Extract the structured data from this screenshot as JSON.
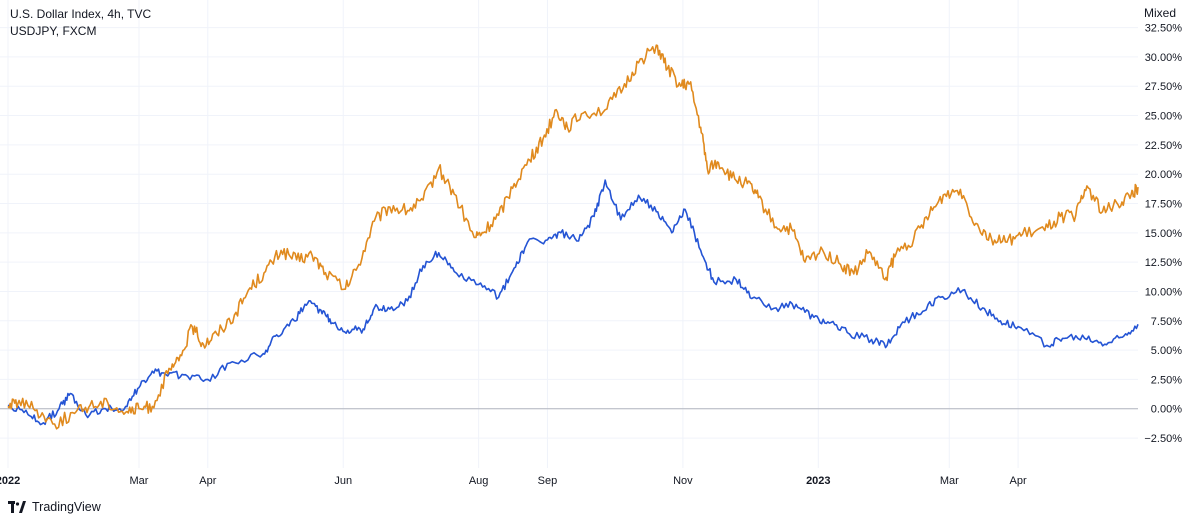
{
  "legend": {
    "series1": "U.S. Dollar Index, 4h, TVC",
    "series2": "USDJPY, FXCM"
  },
  "scale_mode": "Mixed",
  "brand": "TradingView",
  "colors": {
    "dxy": "#2454d4",
    "usdjpy": "#e08a1e",
    "zero_line": "#b2b5be",
    "text": "#131722"
  },
  "chart_data": {
    "type": "line",
    "y_unit": "percent change",
    "ylim": [
      -4.2,
      34
    ],
    "y_ticks": [
      "32.50%",
      "30.00%",
      "27.50%",
      "25.00%",
      "22.50%",
      "20.00%",
      "17.50%",
      "15.00%",
      "12.50%",
      "10.00%",
      "7.50%",
      "5.00%",
      "2.50%",
      "0.00%",
      "−2.50%"
    ],
    "y_tick_values": [
      32.5,
      30,
      27.5,
      25,
      22.5,
      20,
      17.5,
      15,
      12.5,
      10,
      7.5,
      5,
      2.5,
      0,
      -2.5
    ],
    "x_ticks": [
      {
        "label": "2022",
        "date": "2022-01-01",
        "bold": true
      },
      {
        "label": "Mar",
        "date": "2022-03-01",
        "bold": false
      },
      {
        "label": "Apr",
        "date": "2022-04-01",
        "bold": false
      },
      {
        "label": "Jun",
        "date": "2022-06-01",
        "bold": false
      },
      {
        "label": "Aug",
        "date": "2022-08-01",
        "bold": false
      },
      {
        "label": "Sep",
        "date": "2022-09-01",
        "bold": false
      },
      {
        "label": "Nov",
        "date": "2022-11-01",
        "bold": false
      },
      {
        "label": "2023",
        "date": "2023-01-01",
        "bold": true
      },
      {
        "label": "Mar",
        "date": "2023-03-01",
        "bold": false
      },
      {
        "label": "Apr",
        "date": "2023-04-01",
        "bold": false
      }
    ],
    "xlim": [
      "2022-01-01",
      "2023-05-25"
    ],
    "series": [
      {
        "name": "U.S. Dollar Index, 4h, TVC",
        "color": "#2454d4",
        "points": [
          [
            "2022-01-01",
            0.3
          ],
          [
            "2022-01-10",
            -0.5
          ],
          [
            "2022-01-17",
            -1.2
          ],
          [
            "2022-01-24",
            0.0
          ],
          [
            "2022-01-29",
            1.3
          ],
          [
            "2022-02-05",
            -0.5
          ],
          [
            "2022-02-14",
            0.0
          ],
          [
            "2022-02-23",
            0.2
          ],
          [
            "2022-03-01",
            1.8
          ],
          [
            "2022-03-07",
            3.2
          ],
          [
            "2022-03-14",
            2.8
          ],
          [
            "2022-03-22",
            2.9
          ],
          [
            "2022-04-01",
            2.5
          ],
          [
            "2022-04-12",
            4.0
          ],
          [
            "2022-04-26",
            4.7
          ],
          [
            "2022-05-02",
            6.3
          ],
          [
            "2022-05-10",
            7.5
          ],
          [
            "2022-05-16",
            9.0
          ],
          [
            "2022-05-22",
            8.4
          ],
          [
            "2022-05-27",
            7.3
          ],
          [
            "2022-06-03",
            6.7
          ],
          [
            "2022-06-10",
            6.8
          ],
          [
            "2022-06-15",
            8.6
          ],
          [
            "2022-06-22",
            8.5
          ],
          [
            "2022-06-30",
            9.2
          ],
          [
            "2022-07-07",
            12.2
          ],
          [
            "2022-07-14",
            13.3
          ],
          [
            "2022-07-21",
            11.7
          ],
          [
            "2022-08-01",
            10.6
          ],
          [
            "2022-08-10",
            9.5
          ],
          [
            "2022-08-17",
            12.0
          ],
          [
            "2022-08-23",
            14.2
          ],
          [
            "2022-09-01",
            14.4
          ],
          [
            "2022-09-07",
            15.0
          ],
          [
            "2022-09-15",
            14.3
          ],
          [
            "2022-09-22",
            16.4
          ],
          [
            "2022-09-27",
            19.5
          ],
          [
            "2022-10-04",
            16.1
          ],
          [
            "2022-10-12",
            18.2
          ],
          [
            "2022-10-20",
            16.8
          ],
          [
            "2022-10-27",
            15.0
          ],
          [
            "2022-11-02",
            17.0
          ],
          [
            "2022-11-09",
            13.5
          ],
          [
            "2022-11-15",
            10.8
          ],
          [
            "2022-11-25",
            11.0
          ],
          [
            "2022-12-02",
            9.4
          ],
          [
            "2022-12-13",
            8.6
          ],
          [
            "2022-12-22",
            8.9
          ],
          [
            "2022-12-30",
            7.8
          ],
          [
            "2023-01-06",
            7.3
          ],
          [
            "2023-01-14",
            6.5
          ],
          [
            "2023-01-25",
            5.9
          ],
          [
            "2023-02-01",
            5.4
          ],
          [
            "2023-02-08",
            7.4
          ],
          [
            "2023-02-17",
            8.3
          ],
          [
            "2023-02-25",
            9.5
          ],
          [
            "2023-03-07",
            10.1
          ],
          [
            "2023-03-16",
            8.6
          ],
          [
            "2023-03-24",
            7.5
          ],
          [
            "2023-04-01",
            7.0
          ],
          [
            "2023-04-14",
            5.4
          ],
          [
            "2023-04-21",
            6.0
          ],
          [
            "2023-05-01",
            6.0
          ],
          [
            "2023-05-10",
            5.5
          ],
          [
            "2023-05-18",
            6.1
          ],
          [
            "2023-05-25",
            7.2
          ]
        ]
      },
      {
        "name": "USDJPY, FXCM",
        "color": "#e08a1e",
        "points": [
          [
            "2022-01-01",
            0.2
          ],
          [
            "2022-01-06",
            0.7
          ],
          [
            "2022-01-14",
            -0.1
          ],
          [
            "2022-01-22",
            -1.3
          ],
          [
            "2022-01-31",
            -0.4
          ],
          [
            "2022-02-07",
            0.3
          ],
          [
            "2022-02-15",
            0.5
          ],
          [
            "2022-02-23",
            -0.3
          ],
          [
            "2022-03-01",
            0.0
          ],
          [
            "2022-03-07",
            0.2
          ],
          [
            "2022-03-14",
            3.0
          ],
          [
            "2022-03-19",
            4.1
          ],
          [
            "2022-03-25",
            7.0
          ],
          [
            "2022-03-30",
            5.5
          ],
          [
            "2022-04-05",
            6.4
          ],
          [
            "2022-04-13",
            8.0
          ],
          [
            "2022-04-20",
            10.3
          ],
          [
            "2022-04-27",
            11.7
          ],
          [
            "2022-05-04",
            13.5
          ],
          [
            "2022-05-11",
            12.7
          ],
          [
            "2022-05-18",
            13.1
          ],
          [
            "2022-05-24",
            11.6
          ],
          [
            "2022-06-02",
            10.2
          ],
          [
            "2022-06-08",
            12.3
          ],
          [
            "2022-06-15",
            16.0
          ],
          [
            "2022-06-22",
            17.2
          ],
          [
            "2022-06-30",
            16.9
          ],
          [
            "2022-07-07",
            17.8
          ],
          [
            "2022-07-14",
            20.5
          ],
          [
            "2022-07-21",
            18.3
          ],
          [
            "2022-07-30",
            14.6
          ],
          [
            "2022-08-03",
            15.0
          ],
          [
            "2022-08-10",
            16.5
          ],
          [
            "2022-08-17",
            19.2
          ],
          [
            "2022-08-24",
            21.2
          ],
          [
            "2022-08-30",
            23.0
          ],
          [
            "2022-09-05",
            25.5
          ],
          [
            "2022-09-10",
            24.0
          ],
          [
            "2022-09-17",
            25.2
          ],
          [
            "2022-09-27",
            25.5
          ],
          [
            "2022-10-05",
            27.3
          ],
          [
            "2022-10-12",
            29.5
          ],
          [
            "2022-10-20",
            31.0
          ],
          [
            "2022-10-25",
            29.0
          ],
          [
            "2022-10-31",
            27.5
          ],
          [
            "2022-11-04",
            27.7
          ],
          [
            "2022-11-09",
            24.0
          ],
          [
            "2022-11-12",
            20.5
          ],
          [
            "2022-11-17",
            21.0
          ],
          [
            "2022-11-23",
            19.7
          ],
          [
            "2022-11-30",
            19.2
          ],
          [
            "2022-12-05",
            18.0
          ],
          [
            "2022-12-13",
            15.5
          ],
          [
            "2022-12-20",
            15.3
          ],
          [
            "2022-12-26",
            12.5
          ],
          [
            "2023-01-03",
            13.5
          ],
          [
            "2023-01-11",
            12.3
          ],
          [
            "2023-01-17",
            11.5
          ],
          [
            "2023-01-24",
            13.4
          ],
          [
            "2023-01-31",
            11.0
          ],
          [
            "2023-02-05",
            13.2
          ],
          [
            "2023-02-13",
            14.5
          ],
          [
            "2023-02-20",
            16.5
          ],
          [
            "2023-02-27",
            18.3
          ],
          [
            "2023-03-06",
            18.7
          ],
          [
            "2023-03-13",
            15.8
          ],
          [
            "2023-03-20",
            14.5
          ],
          [
            "2023-03-27",
            14.2
          ],
          [
            "2023-04-03",
            14.9
          ],
          [
            "2023-04-13",
            15.2
          ],
          [
            "2023-04-20",
            16.4
          ],
          [
            "2023-04-27",
            16.5
          ],
          [
            "2023-05-02",
            19.0
          ],
          [
            "2023-05-09",
            16.8
          ],
          [
            "2023-05-16",
            17.4
          ],
          [
            "2023-05-22",
            18.3
          ],
          [
            "2023-05-25",
            18.9
          ]
        ]
      }
    ]
  }
}
